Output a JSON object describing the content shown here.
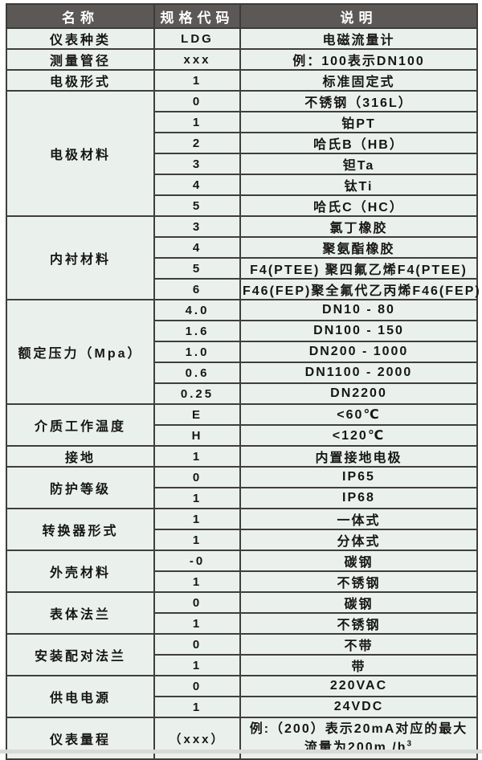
{
  "header": {
    "name": "名称",
    "code": "规格代码",
    "desc": "说明"
  },
  "rows": [
    {
      "name": "仪表种类",
      "entries": [
        {
          "code": "LDG",
          "desc": "电磁流量计"
        }
      ]
    },
    {
      "name": "测量管径",
      "entries": [
        {
          "code": "xxx",
          "desc": "例：100表示DN100"
        }
      ]
    },
    {
      "name": "电极形式",
      "entries": [
        {
          "code": "1",
          "desc": "标准固定式"
        }
      ]
    },
    {
      "name": "电极材料",
      "entries": [
        {
          "code": "0",
          "desc": "不锈钢（316L）"
        },
        {
          "code": "1",
          "desc": "铂PT"
        },
        {
          "code": "2",
          "desc": "哈氏B（HB）"
        },
        {
          "code": "3",
          "desc": "钽Ta"
        },
        {
          "code": "4",
          "desc": "钛Ti"
        },
        {
          "code": "5",
          "desc": "哈氏C（HC）"
        }
      ]
    },
    {
      "name": "内衬材料",
      "entries": [
        {
          "code": "3",
          "desc": "氯丁橡胶"
        },
        {
          "code": "4",
          "desc": "聚氨酯橡胶"
        },
        {
          "code": "5",
          "desc": "F4(PTEE) 聚四氟乙烯F4(PTEE)"
        },
        {
          "code": "6",
          "desc": "F46(FEP)聚全氟代乙丙烯F46(FEP)"
        }
      ]
    },
    {
      "name": "额定压力（Mpa）",
      "entries": [
        {
          "code": "4.0",
          "desc": "DN10 - 80"
        },
        {
          "code": "1.6",
          "desc": "DN100 - 150"
        },
        {
          "code": "1.0",
          "desc": "DN200 - 1000"
        },
        {
          "code": "0.6",
          "desc": "DN1100 - 2000"
        },
        {
          "code": "0.25",
          "desc": "DN2200"
        }
      ]
    },
    {
      "name": "介质工作温度",
      "entries": [
        {
          "code": "E",
          "desc": "<60℃"
        },
        {
          "code": "H",
          "desc": "<120℃"
        }
      ]
    },
    {
      "name": "接地",
      "entries": [
        {
          "code": "1",
          "desc": "内置接地电极"
        }
      ]
    },
    {
      "name": "防护等级",
      "entries": [
        {
          "code": "0",
          "desc": "IP65"
        },
        {
          "code": "1",
          "desc": "IP68"
        }
      ]
    },
    {
      "name": "转换器形式",
      "entries": [
        {
          "code": "1",
          "desc": "一体式"
        },
        {
          "code": "1",
          "desc": "分体式"
        }
      ]
    },
    {
      "name": "外壳材料",
      "entries": [
        {
          "code": "-0",
          "desc": "碳钢"
        },
        {
          "code": "1",
          "desc": "不锈钢"
        }
      ]
    },
    {
      "name": "表体法兰",
      "entries": [
        {
          "code": "0",
          "desc": "碳钢"
        },
        {
          "code": "1",
          "desc": "不锈钢"
        }
      ]
    },
    {
      "name": "安装配对法兰",
      "entries": [
        {
          "code": "0",
          "desc": "不带"
        },
        {
          "code": "1",
          "desc": "带"
        }
      ]
    },
    {
      "name": "供电电源",
      "entries": [
        {
          "code": "0",
          "desc": "220VAC"
        },
        {
          "code": "1",
          "desc": "24VDC"
        }
      ]
    },
    {
      "name": "仪表量程",
      "entries": [
        {
          "code": "（xxx）",
          "desc_line1": "例:（200）表示20mA对应的最大",
          "desc_line2": "流量为200m /h",
          "desc_sup": "3"
        }
      ]
    }
  ],
  "colors": {
    "header_bg": "#5b5855",
    "header_text": "#ffffff",
    "cell_bg": "#eaf1ec",
    "border": "#403e3c"
  }
}
